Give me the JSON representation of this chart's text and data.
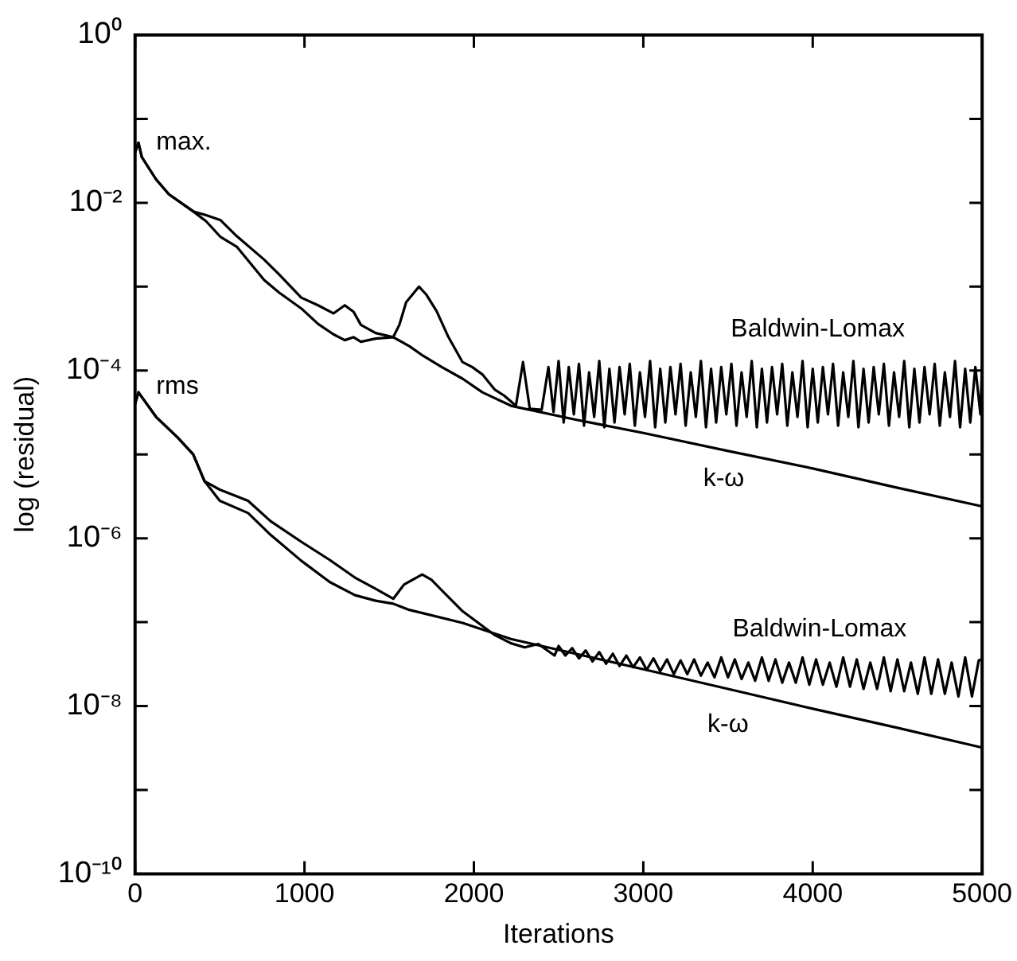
{
  "chart_data": {
    "type": "line",
    "xlabel": "Iterations",
    "ylabel": "log (residual)",
    "log": true,
    "xlim": [
      0,
      5000
    ],
    "xticks": [
      0,
      1000,
      2000,
      3000,
      4000,
      5000
    ],
    "ylim": [
      1e-10,
      1
    ],
    "yticks": [
      {
        "value": 1,
        "label": "10⁰"
      },
      {
        "value": 0.1,
        "label": null
      },
      {
        "value": 0.01,
        "label": "10⁻²"
      },
      {
        "value": 0.001,
        "label": null
      },
      {
        "value": 0.0001,
        "label": "10⁻⁴"
      },
      {
        "value": 1e-05,
        "label": null
      },
      {
        "value": 1e-06,
        "label": "10⁻⁶"
      },
      {
        "value": 1e-07,
        "label": null
      },
      {
        "value": 1e-08,
        "label": "10⁻⁸"
      },
      {
        "value": 1e-09,
        "label": null
      },
      {
        "value": 1e-10,
        "label": "10⁻¹⁰"
      }
    ],
    "annotations": [
      "max.",
      "rms",
      "Baldwin-Lomax",
      "k-ω",
      "Baldwin-Lomax",
      "k-ω"
    ],
    "series": [
      {
        "color": "#000000",
        "x": [
          0,
          20,
          40,
          124,
          200,
          343,
          420,
          505,
          600,
          762,
          850,
          981,
          1080,
          1171,
          1238,
          1290,
          1333,
          1420,
          1524,
          1560,
          1600,
          1676,
          1720,
          1780,
          1850,
          1933,
          1990,
          2050,
          2124,
          2180,
          2248,
          2290,
          2330,
          2400,
          2440,
          2470,
          2500,
          2530,
          2560,
          2590,
          2620,
          2650,
          2680,
          2710,
          2740,
          2770,
          2800,
          2830,
          2860,
          2890,
          2920,
          2950,
          2980,
          3010,
          3040,
          3070,
          3100,
          3130,
          3160,
          3190,
          3220,
          3250,
          3280,
          3310,
          3340,
          3370,
          3400,
          3430,
          3460,
          3490,
          3520,
          3550,
          3580,
          3610,
          3640,
          3670,
          3700,
          3730,
          3760,
          3790,
          3820,
          3850,
          3880,
          3910,
          3940,
          3970,
          4000,
          4030,
          4060,
          4090,
          4120,
          4150,
          4180,
          4210,
          4240,
          4270,
          4300,
          4330,
          4360,
          4390,
          4420,
          4450,
          4480,
          4510,
          4540,
          4570,
          4600,
          4630,
          4660,
          4690,
          4720,
          4750,
          4780,
          4810,
          4840,
          4870,
          4900,
          4930,
          4960,
          4990,
          5000
        ],
        "values": [
          0.04,
          0.052,
          0.035,
          0.019,
          0.0126,
          0.0079,
          0.0071,
          0.0062,
          0.004,
          0.0021,
          0.0014,
          0.00074,
          0.0006,
          0.00048,
          0.0006,
          0.0005,
          0.00035,
          0.00028,
          0.00025,
          0.00035,
          0.00065,
          0.001,
          0.0008,
          0.00051,
          0.00025,
          0.000126,
          0.00011,
          9e-05,
          5.9e-05,
          5e-05,
          3.8e-05,
          0.000126,
          3.5e-05,
          3.4e-05,
          0.00011,
          3.2e-05,
          0.00013,
          2.4e-05,
          0.00011,
          3e-05,
          0.00012,
          2.2e-05,
          9.5e-05,
          2.8e-05,
          0.00013,
          2.1e-05,
          0.000105,
          2.4e-05,
          0.00011,
          3e-05,
          0.00012,
          2.2e-05,
          9.5e-05,
          2.8e-05,
          0.00013,
          2.1e-05,
          0.000105,
          2.4e-05,
          0.00011,
          3e-05,
          0.00012,
          2.2e-05,
          9.5e-05,
          2.8e-05,
          0.00013,
          2.1e-05,
          0.000105,
          2.4e-05,
          0.00011,
          3e-05,
          0.00012,
          2.2e-05,
          9.5e-05,
          2.8e-05,
          0.00013,
          2.1e-05,
          0.000105,
          2.4e-05,
          0.00011,
          3e-05,
          0.00012,
          2.2e-05,
          9.5e-05,
          2.8e-05,
          0.00013,
          2.1e-05,
          0.000105,
          2.4e-05,
          0.00011,
          3e-05,
          0.00012,
          2.2e-05,
          9.5e-05,
          2.8e-05,
          0.00013,
          2.1e-05,
          0.000105,
          2.4e-05,
          0.00011,
          3e-05,
          0.00012,
          2.2e-05,
          9.5e-05,
          2.8e-05,
          0.00013,
          2.1e-05,
          0.000105,
          2.4e-05,
          0.00011,
          3e-05,
          0.00012,
          2.2e-05,
          9.5e-05,
          2.8e-05,
          0.00013,
          2.1e-05,
          0.000105,
          2.4e-05,
          0.00011,
          3e-05,
          0.00012
        ]
      },
      {
        "color": "#000000",
        "x": [
          0,
          20,
          40,
          124,
          200,
          343,
          420,
          505,
          600,
          762,
          850,
          981,
          1080,
          1171,
          1238,
          1290,
          1333,
          1420,
          1524,
          1619,
          1700,
          1810,
          1933,
          2050,
          2219,
          2600,
          3000,
          3500,
          4000,
          4500,
          5000
        ],
        "values": [
          0.04,
          0.052,
          0.035,
          0.019,
          0.0126,
          0.0079,
          0.006,
          0.0039,
          0.003,
          0.0012,
          0.00085,
          0.00055,
          0.00036,
          0.00027,
          0.00023,
          0.00025,
          0.00022,
          0.00024,
          0.00025,
          0.000195,
          0.00015,
          0.00011,
          8e-05,
          5.5e-05,
          3.8e-05,
          2.6e-05,
          1.8e-05,
          1.1e-05,
          6.8e-06,
          4e-06,
          2.4e-06
        ]
      },
      {
        "color": "#000000",
        "x": [
          0,
          20,
          124,
          250,
          343,
          410,
          500,
          667,
          800,
          981,
          1150,
          1298,
          1420,
          1524,
          1587,
          1695,
          1750,
          1810,
          1933,
          2124,
          2219,
          2300,
          2380,
          2476,
          2500,
          2540,
          2580,
          2620,
          2660,
          2700,
          2740,
          2780,
          2820,
          2860,
          2900,
          2940,
          2980,
          3020,
          3060,
          3100,
          3140,
          3180,
          3220,
          3260,
          3300,
          3340,
          3380,
          3420,
          3460,
          3500,
          3540,
          3580,
          3620,
          3660,
          3700,
          3740,
          3780,
          3820,
          3860,
          3900,
          3940,
          3980,
          4020,
          4060,
          4100,
          4140,
          4180,
          4220,
          4260,
          4300,
          4340,
          4380,
          4420,
          4460,
          4500,
          4540,
          4580,
          4620,
          4660,
          4700,
          4740,
          4780,
          4820,
          4860,
          4900,
          4940,
          4980,
          5000
        ],
        "values": [
          4e-05,
          5.5e-05,
          2.8e-05,
          1.6e-05,
          1e-05,
          4.8e-06,
          3.8e-06,
          2.8e-06,
          1.6e-06,
          9.1e-07,
          5.5e-07,
          3.4e-07,
          2.5e-07,
          1.9e-07,
          2.8e-07,
          3.7e-07,
          3.2e-07,
          2.4e-07,
          1.35e-07,
          7e-08,
          5.6e-08,
          5e-08,
          5.5e-08,
          4e-08,
          5.2e-08,
          4e-08,
          4.9e-08,
          3.7e-08,
          4.6e-08,
          3.4e-08,
          4.4e-08,
          3.2e-08,
          4.2e-08,
          3e-08,
          4e-08,
          2.9e-08,
          3.8e-08,
          2.7e-08,
          3.7e-08,
          2.6e-08,
          3.6e-08,
          2.4e-08,
          3.5e-08,
          2.4e-08,
          3.6e-08,
          2.3e-08,
          3.3e-08,
          2.2e-08,
          3.8e-08,
          2.2e-08,
          3.6e-08,
          2.1e-08,
          3.3e-08,
          2e-08,
          3.8e-08,
          2e-08,
          3.6e-08,
          1.9e-08,
          3.3e-08,
          1.9e-08,
          3.8e-08,
          1.8e-08,
          3.6e-08,
          1.8e-08,
          3.3e-08,
          1.7e-08,
          3.8e-08,
          1.7e-08,
          3.6e-08,
          1.6e-08,
          3.3e-08,
          1.6e-08,
          3.8e-08,
          1.5e-08,
          3.6e-08,
          1.5e-08,
          3.3e-08,
          1.4e-08,
          3.8e-08,
          1.4e-08,
          3.6e-08,
          1.4e-08,
          3.3e-08,
          1.3e-08,
          3.8e-08,
          1.3e-08,
          3.5e-08,
          3.6e-08
        ]
      },
      {
        "color": "#000000",
        "x": [
          0,
          20,
          124,
          250,
          343,
          410,
          500,
          667,
          800,
          981,
          1150,
          1298,
          1420,
          1524,
          1619,
          1933,
          2219,
          2600,
          3000,
          3500,
          4000,
          4500,
          5000
        ],
        "values": [
          4e-05,
          5.5e-05,
          2.8e-05,
          1.6e-05,
          1e-05,
          4.8e-06,
          2.8e-06,
          2e-06,
          1.1e-06,
          5.4e-07,
          3e-07,
          2.1e-07,
          1.8e-07,
          1.66e-07,
          1.4e-07,
          9.8e-08,
          6.3e-08,
          4.2e-08,
          2.75e-08,
          1.6e-08,
          9.3e-09,
          5.5e-09,
          3.2e-09
        ]
      }
    ]
  }
}
